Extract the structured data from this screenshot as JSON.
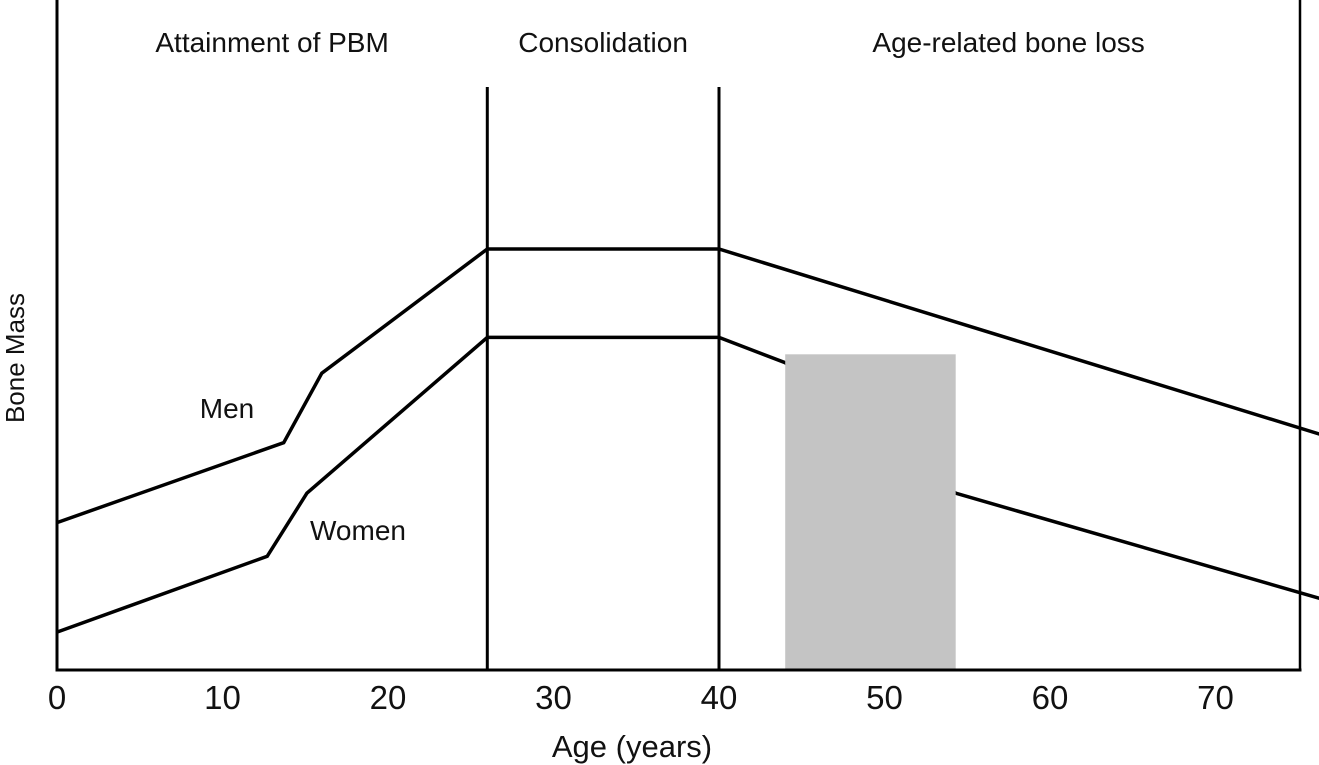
{
  "chart_data": {
    "type": "line",
    "title": "",
    "xlabel": "Age (years)",
    "ylabel": "Bone Mass",
    "x_ticks": [
      0,
      10,
      20,
      30,
      40,
      50,
      60,
      70
    ],
    "x_range_years": [
      0,
      76
    ],
    "y_axis_scale": "relative bone mass (0-100, unlabeled on axis)",
    "grid": false,
    "legend": "inline-labels",
    "line_color": "#000000",
    "phases": [
      {
        "label": "Attainment of PBM",
        "age_start": 0,
        "age_end": 26
      },
      {
        "label": "Consolidation",
        "age_start": 26,
        "age_end": 40
      },
      {
        "label": "Age-related bone loss",
        "age_start": 40,
        "age_end": 75
      }
    ],
    "phase_divider_ages": [
      26,
      40
    ],
    "series": [
      {
        "name": "Men",
        "points": [
          [
            0,
            35
          ],
          [
            13.7,
            54
          ],
          [
            16,
            70.5
          ],
          [
            26,
            100
          ],
          [
            40,
            100
          ],
          [
            76.3,
            56
          ]
        ]
      },
      {
        "name": "Women",
        "points": [
          [
            0,
            9
          ],
          [
            12.7,
            27
          ],
          [
            15.1,
            42
          ],
          [
            26,
            79
          ],
          [
            40,
            79
          ],
          [
            44,
            73
          ],
          [
            54.3,
            42
          ],
          [
            76.3,
            17
          ]
        ]
      }
    ],
    "highlight_band": {
      "age_start": 44,
      "age_end": 54.3,
      "bone_mass_top": 75,
      "bone_mass_bottom": 0,
      "color": "#c4c4c4"
    }
  }
}
